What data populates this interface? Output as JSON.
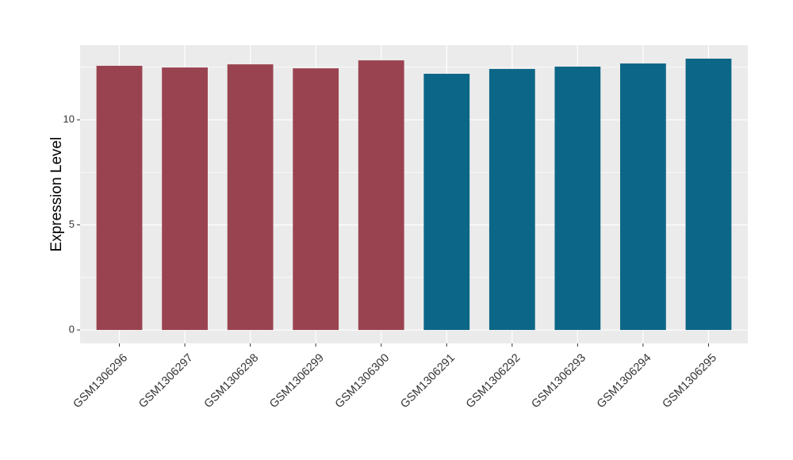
{
  "chart_data": {
    "type": "bar",
    "y_label": "Expression Level",
    "categories": [
      "GSM1306296",
      "GSM1306297",
      "GSM1306298",
      "GSM1306299",
      "GSM1306300",
      "GSM1306291",
      "GSM1306292",
      "GSM1306293",
      "GSM1306294",
      "GSM1306295"
    ],
    "values": [
      12.57,
      12.49,
      12.64,
      12.45,
      12.83,
      12.19,
      12.42,
      12.53,
      12.68,
      12.91
    ],
    "colors": [
      "#9a4350",
      "#9a4350",
      "#9a4350",
      "#9a4350",
      "#9a4350",
      "#0c6687",
      "#0c6687",
      "#0c6687",
      "#0c6687",
      "#0c6687"
    ],
    "ylim": [
      -0.64,
      13.55
    ],
    "yticks": [
      0,
      5,
      10
    ],
    "minor_yticks": [
      2.5,
      7.5,
      12.5
    ],
    "grid": true
  }
}
